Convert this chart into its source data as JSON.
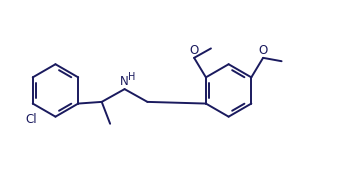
{
  "bg_color": "#ffffff",
  "bond_color": "#1a1a5e",
  "text_color": "#1a1a5e",
  "line_width": 1.4,
  "font_size": 8.5,
  "figsize": [
    3.53,
    1.91
  ],
  "dpi": 100,
  "xlim": [
    0,
    10.5
  ],
  "ylim": [
    0,
    5.6
  ]
}
